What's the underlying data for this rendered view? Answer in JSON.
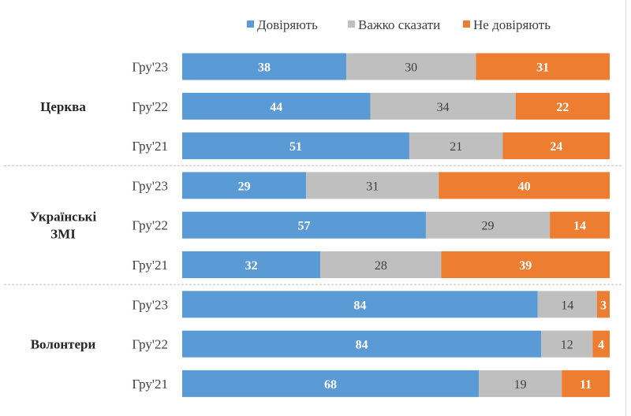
{
  "chart_data": {
    "type": "bar",
    "orientation": "horizontal",
    "stacked": "percent",
    "legend_position": "top",
    "grid": false,
    "series": [
      {
        "name": "Довіряють",
        "color": "#5B9BD5"
      },
      {
        "name": "Важко сказати",
        "color": "#BFBFBF"
      },
      {
        "name": "Не  довіряють",
        "color": "#ED7D31"
      }
    ],
    "groups": [
      {
        "name": "Церква",
        "rows": [
          {
            "label": "Гру'23",
            "values": [
              38,
              30,
              31
            ]
          },
          {
            "label": "Гру'22",
            "values": [
              44,
              34,
              22
            ]
          },
          {
            "label": "Гру'21",
            "values": [
              51,
              21,
              24
            ]
          }
        ]
      },
      {
        "name": "Українські ЗМІ",
        "name_lines": [
          "Українські",
          "ЗМІ"
        ],
        "rows": [
          {
            "label": "Гру'23",
            "values": [
              29,
              31,
              40
            ]
          },
          {
            "label": "Гру'22",
            "values": [
              57,
              29,
              14
            ]
          },
          {
            "label": "Гру'21",
            "values": [
              32,
              28,
              39
            ]
          }
        ]
      },
      {
        "name": "Волонтери",
        "rows": [
          {
            "label": "Гру'23",
            "values": [
              84,
              14,
              3
            ]
          },
          {
            "label": "Гру'22",
            "values": [
              84,
              12,
              4
            ]
          },
          {
            "label": "Гру'21",
            "values": [
              68,
              19,
              11
            ]
          }
        ]
      }
    ]
  }
}
